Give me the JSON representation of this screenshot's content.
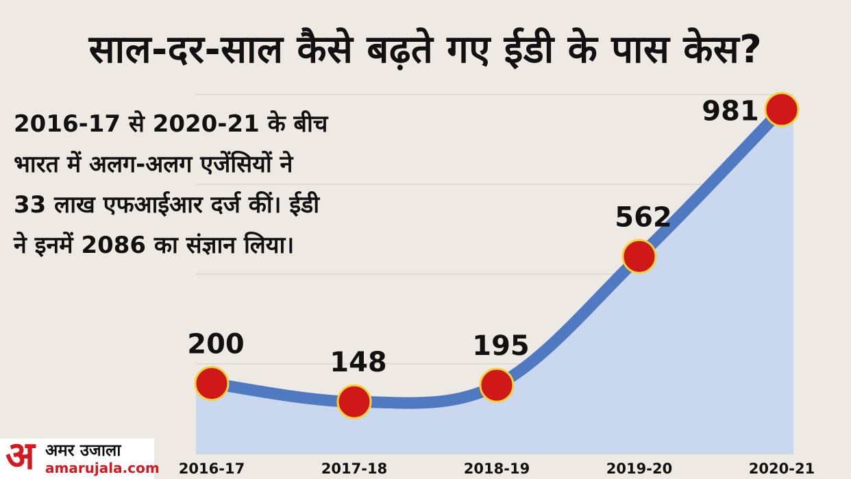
{
  "title": "साल-दर-साल कैसे बढ़ते गए ईडी के पास केस?",
  "subtitle_lines": [
    "2016-17 से 2020-21 के बीच",
    "भारत में अलग-अलग एजेंसियों ने",
    "33 लाख एफआईआर दर्ज कीं। ईडी",
    "ने इनमें 2086 का संज्ञान लिया।"
  ],
  "chart_data": {
    "type": "area",
    "categories": [
      "2016-17",
      "2017-18",
      "2018-19",
      "2019-20",
      "2020-21"
    ],
    "values": [
      200,
      148,
      195,
      562,
      981
    ],
    "data_labels": [
      "200",
      "148",
      "195",
      "562",
      "981"
    ],
    "ylim": [
      0,
      1000
    ],
    "grid": true,
    "colors": {
      "line": "#4f79c0",
      "fill": "#c9d7ef",
      "marker": "#d01818",
      "marker_ring": "#f3d23a",
      "grid": "#cfcbc4"
    }
  },
  "logo": {
    "glyph": "अ",
    "brand": "अमर उजाला",
    "domain": "amarujala.com"
  }
}
